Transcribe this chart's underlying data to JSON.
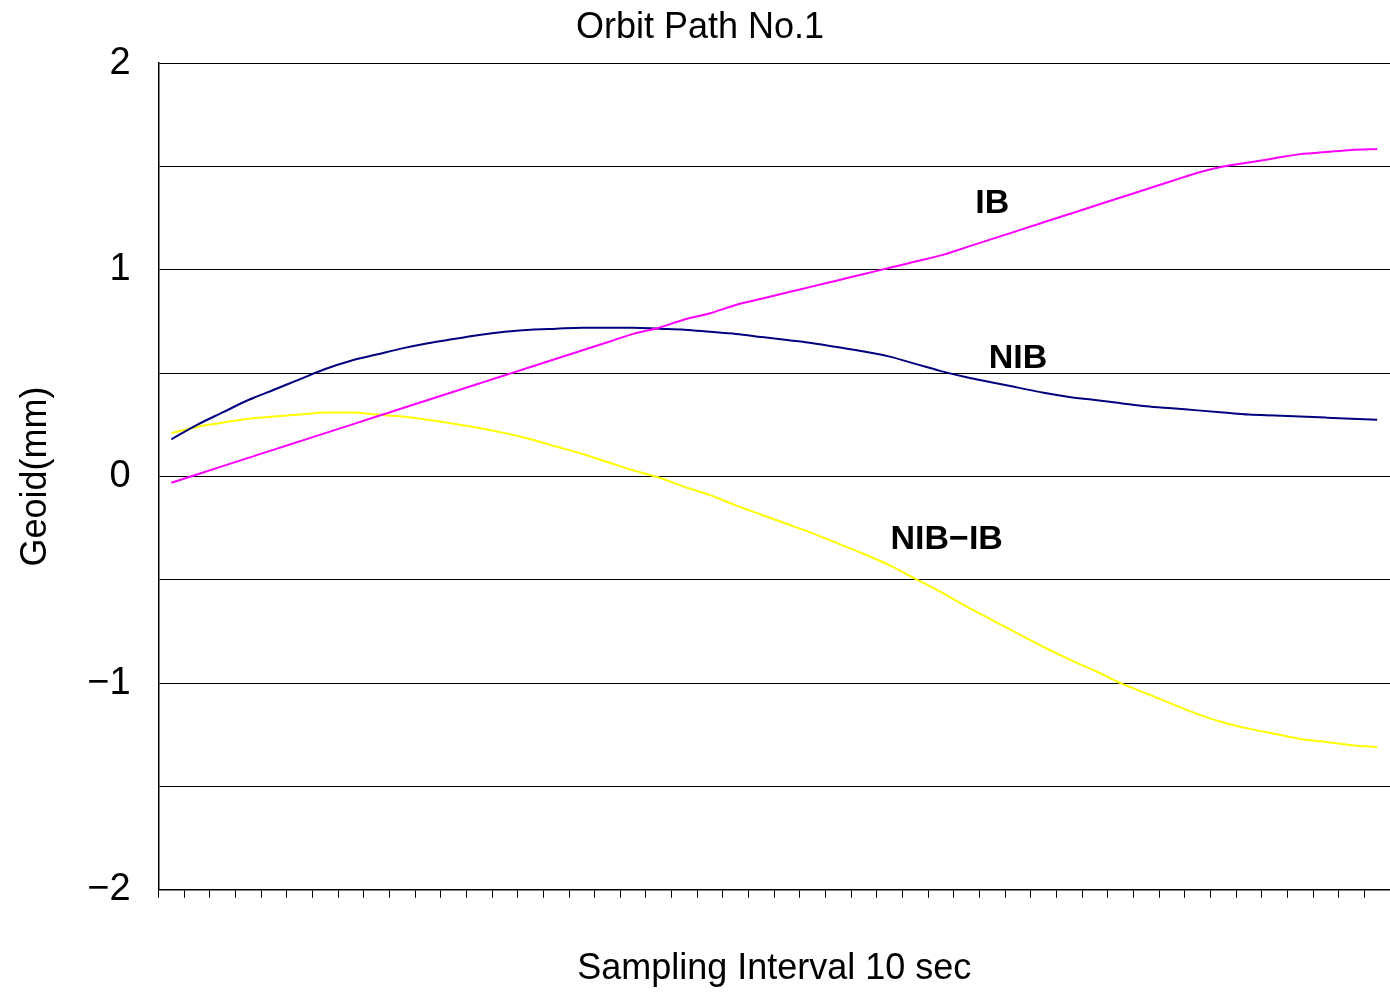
{
  "chart_data": {
    "type": "line",
    "title": "Orbit Path No.1",
    "xlabel": "Sampling Interval 10 sec",
    "ylabel": "Geoid(mm)",
    "categories": [
      null,
      null,
      null,
      null,
      null,
      null,
      null,
      null,
      null,
      null,
      null,
      null,
      null,
      null,
      null,
      null,
      null,
      null,
      null,
      null,
      null,
      null,
      null,
      null,
      null,
      null,
      null,
      null,
      null,
      null,
      null,
      null,
      null,
      null,
      null,
      null,
      null,
      null,
      null,
      null,
      null,
      null,
      null,
      null,
      null,
      null,
      null,
      null
    ],
    "ylim": [
      -2,
      2
    ],
    "yticks": [
      {
        "value": -2,
        "label": "−2"
      },
      {
        "value": -1.5,
        "label": null
      },
      {
        "value": -1,
        "label": "−1"
      },
      {
        "value": -0.5,
        "label": null
      },
      0,
      {
        "value": 0.5,
        "label": null
      },
      1,
      {
        "value": 1.5,
        "label": null
      },
      2
    ],
    "grid": "y",
    "legend": false,
    "marker": "none",
    "line_style": "solid",
    "tick_labels": "y",
    "series": [
      {
        "name": "IB",
        "color": "#ff00ff",
        "values": [
          -0.03,
          0.01,
          0.05,
          0.09,
          0.13,
          0.17,
          0.21,
          0.25,
          0.29,
          0.33,
          0.37,
          0.41,
          0.45,
          0.49,
          0.53,
          0.57,
          0.61,
          0.65,
          0.69,
          0.72,
          0.76,
          0.79,
          0.83,
          0.86,
          0.89,
          0.92,
          0.95,
          0.98,
          1.01,
          1.04,
          1.07,
          1.11,
          1.15,
          1.19,
          1.23,
          1.27,
          1.31,
          1.35,
          1.39,
          1.43,
          1.47,
          1.5,
          1.52,
          1.54,
          1.56,
          1.57,
          1.58,
          1.585
        ]
      },
      {
        "name": "NIB",
        "color": "#000080",
        "values": [
          0.18,
          0.25,
          0.31,
          0.37,
          0.42,
          0.47,
          0.52,
          0.56,
          0.59,
          0.62,
          0.645,
          0.665,
          0.685,
          0.7,
          0.71,
          0.715,
          0.72,
          0.72,
          0.72,
          0.715,
          0.71,
          0.7,
          0.69,
          0.675,
          0.66,
          0.645,
          0.625,
          0.605,
          0.58,
          0.545,
          0.51,
          0.48,
          0.455,
          0.43,
          0.405,
          0.385,
          0.37,
          0.355,
          0.34,
          0.33,
          0.32,
          0.31,
          0.3,
          0.295,
          0.29,
          0.285,
          0.28,
          0.275
        ]
      },
      {
        "name": "NIB−IB",
        "color": "#ffff00",
        "values": [
          0.21,
          0.24,
          0.26,
          0.28,
          0.29,
          0.3,
          0.31,
          0.31,
          0.3,
          0.29,
          0.275,
          0.255,
          0.235,
          0.21,
          0.18,
          0.145,
          0.11,
          0.07,
          0.03,
          -0.005,
          -0.05,
          -0.09,
          -0.14,
          -0.185,
          -0.23,
          -0.275,
          -0.325,
          -0.375,
          -0.43,
          -0.495,
          -0.56,
          -0.63,
          -0.695,
          -0.76,
          -0.825,
          -0.885,
          -0.94,
          -1.0,
          -1.05,
          -1.1,
          -1.15,
          -1.19,
          -1.22,
          -1.245,
          -1.27,
          -1.285,
          -1.3,
          -1.31
        ]
      }
    ]
  }
}
